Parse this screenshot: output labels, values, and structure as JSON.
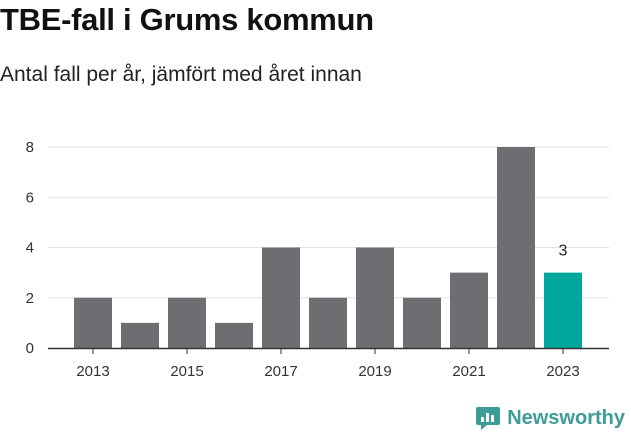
{
  "title": "TBE-fall i Grums kommun",
  "subtitle": "Antal fall per år, jämfört med året innan",
  "brand": {
    "name": "Newsworthy",
    "icon": "newsworthy-logo-icon",
    "color": "#3e9c96"
  },
  "colors": {
    "bar": "#6e6d72",
    "highlight": "#00a79d",
    "axis": "#333333",
    "grid": "#e2e2e2"
  },
  "chart_data": {
    "type": "bar",
    "title": "TBE-fall i Grums kommun",
    "subtitle": "Antal fall per år, jämfört med året innan",
    "categories": [
      "2013",
      "2014",
      "2015",
      "2016",
      "2017",
      "2018",
      "2019",
      "2020",
      "2021",
      "2022",
      "2023"
    ],
    "values": [
      2,
      1,
      2,
      1,
      4,
      2,
      4,
      2,
      3,
      8,
      3
    ],
    "highlight_index": 10,
    "highlight_label": "3",
    "x_tick_labels": [
      "2013",
      "2015",
      "2017",
      "2019",
      "2021",
      "2023"
    ],
    "y_ticks": [
      "0",
      "2",
      "4",
      "6",
      "8"
    ],
    "ylim": [
      0,
      8
    ],
    "xlabel": "",
    "ylabel": "",
    "grid": true
  }
}
